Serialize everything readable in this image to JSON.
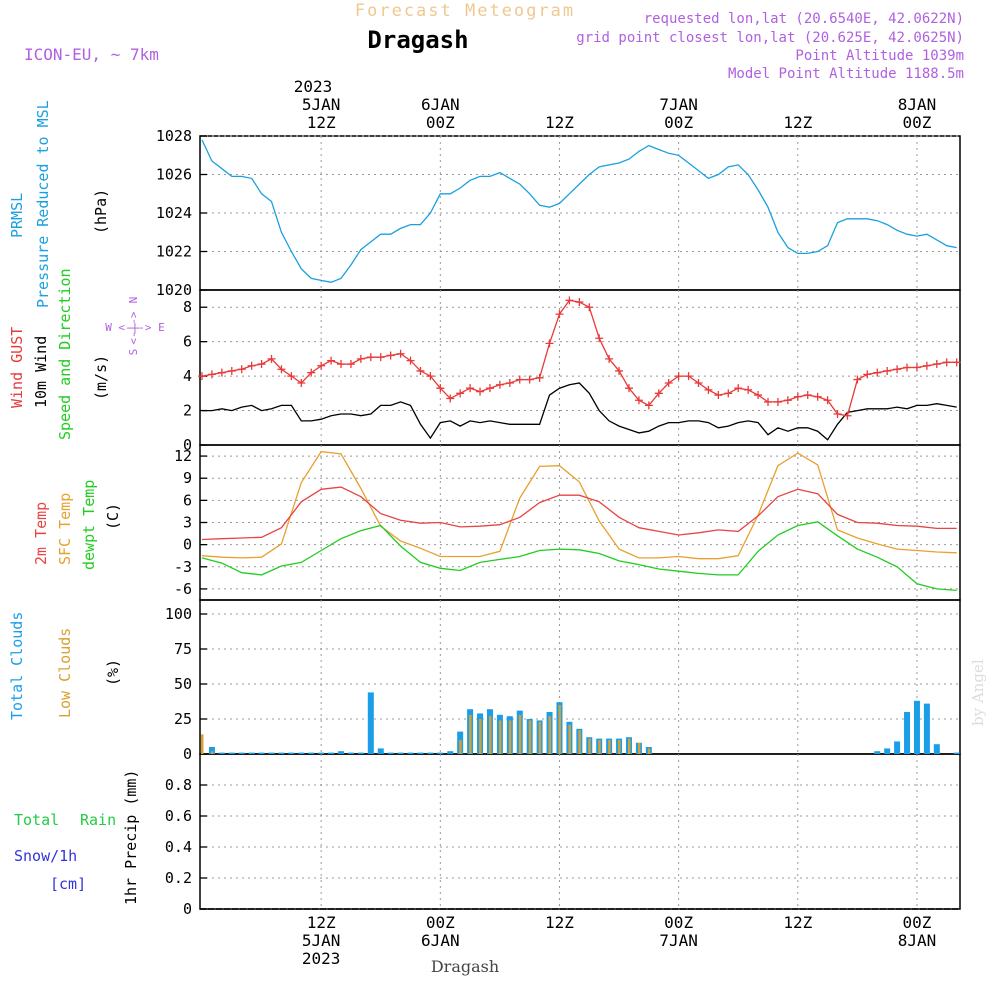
{
  "header": {
    "subtitle": "Forecast Meteogram",
    "location": "Dragash",
    "model": "ICON-EU, ~ 7km",
    "requested": "requested lon,lat (20.6540E, 42.0622N)",
    "grid_point": "grid point closest lon,lat (20.625E, 42.0625N)",
    "point_altitude": "Point Altitude 1039m",
    "model_altitude": "Model Point Altitude 1188.5m",
    "bottom_location": "Dragash",
    "watermark": "by Angel"
  },
  "time_axis": {
    "top_year": "2023",
    "labels": [
      {
        "t": 12,
        "line1": "5JAN",
        "line2": "12Z"
      },
      {
        "t": 24,
        "line1": "6JAN",
        "line2": "00Z"
      },
      {
        "t": 36,
        "line1": "",
        "line2": "12Z"
      },
      {
        "t": 48,
        "line1": "7JAN",
        "line2": "00Z"
      },
      {
        "t": 60,
        "line1": "",
        "line2": "12Z"
      },
      {
        "t": 72,
        "line1": "8JAN",
        "line2": "00Z"
      }
    ],
    "bottom_labels": [
      {
        "t": 12,
        "line1": "12Z",
        "line2": "5JAN",
        "line3": "2023"
      },
      {
        "t": 24,
        "line1": "00Z",
        "line2": "6JAN",
        "line3": ""
      },
      {
        "t": 36,
        "line1": "12Z",
        "line2": "",
        "line3": ""
      },
      {
        "t": 48,
        "line1": "00Z",
        "line2": "7JAN",
        "line3": ""
      },
      {
        "t": 60,
        "line1": "12Z",
        "line2": "",
        "line3": ""
      },
      {
        "t": 72,
        "line1": "00Z",
        "line2": "8JAN",
        "line3": ""
      }
    ]
  },
  "panel_labels": {
    "p1": {
      "a": "PRMSL",
      "b": "Pressure Reduced to MSL",
      "unit": "(hPa)"
    },
    "p2": {
      "a": "Wind GUST",
      "b": "10m Wind",
      "c": "Speed and Direction",
      "unit": "(m/s)",
      "compass_we": "W <-|-> E",
      "compass_n": "N",
      "compass_s": "S",
      "compass_arrows": "<-|->"
    },
    "p3": {
      "a": "2m Temp",
      "b": "SFC Temp",
      "c": "dewpt Temp",
      "unit": "(C)"
    },
    "p4": {
      "a": "Total Clouds",
      "b": "Low Clouds",
      "unit": "(%)"
    },
    "p5": {
      "a": "Total",
      "a2": "Rain",
      "b": "Snow/1h",
      "c": "[cm]",
      "unit": "1hr Precip (mm)"
    }
  },
  "colors": {
    "pressure": "#1aa0e0",
    "gust": "#e83a3a",
    "wind": "#000000",
    "t2m": "#e84444",
    "tsfc": "#e8a030",
    "dewpt": "#22cc22",
    "total_clouds": "#1a9ee8",
    "low_clouds": "#d8a030",
    "rain": "#22cc44",
    "snow": "#3333dd",
    "purple": "#b060e0",
    "header_orange": "#f0c890"
  },
  "chart_data": [
    {
      "type": "line",
      "title": "PRMSL",
      "ylabel": "(hPa)",
      "ylim": [
        1020,
        1028
      ],
      "yticks": [
        1020,
        1022,
        1024,
        1026,
        1028
      ],
      "x_unit": "hours from 5JAN 00Z",
      "x": [
        0,
        1,
        2,
        3,
        4,
        5,
        6,
        7,
        8,
        9,
        10,
        11,
        12,
        13,
        14,
        15,
        16,
        17,
        18,
        19,
        20,
        21,
        22,
        23,
        24,
        25,
        26,
        27,
        28,
        29,
        30,
        31,
        32,
        33,
        34,
        35,
        36,
        37,
        38,
        39,
        40,
        41,
        42,
        43,
        44,
        45,
        46,
        47,
        48,
        49,
        50,
        51,
        52,
        53,
        54,
        55,
        56,
        57,
        58,
        59,
        60,
        61,
        62,
        63,
        64,
        65,
        66,
        67,
        68,
        69,
        70,
        71,
        72,
        73,
        74,
        75,
        76
      ],
      "series": [
        {
          "name": "PRMSL",
          "values": [
            1027.8,
            1026.7,
            1026.3,
            1025.9,
            1025.9,
            1025.8,
            1025.0,
            1024.6,
            1023.0,
            1022.0,
            1021.1,
            1020.6,
            1020.5,
            1020.4,
            1020.6,
            1021.3,
            1022.1,
            1022.5,
            1022.9,
            1022.9,
            1023.2,
            1023.4,
            1023.4,
            1024.0,
            1025.0,
            1025.0,
            1025.3,
            1025.7,
            1025.9,
            1025.9,
            1026.1,
            1025.8,
            1025.5,
            1025.0,
            1024.4,
            1024.3,
            1024.5,
            1025.0,
            1025.5,
            1026.0,
            1026.4,
            1026.5,
            1026.6,
            1026.8,
            1027.2,
            1027.5,
            1027.3,
            1027.1,
            1027.0,
            1026.6,
            1026.2,
            1025.8,
            1026.0,
            1026.4,
            1026.5,
            1026.0,
            1025.2,
            1024.3,
            1023.0,
            1022.2,
            1021.9,
            1021.9,
            1022.0,
            1022.3,
            1023.5,
            1023.7,
            1023.7,
            1023.7,
            1023.6,
            1023.4,
            1023.1,
            1022.9,
            1022.8,
            1022.9,
            1022.6,
            1022.3,
            1022.2
          ]
        }
      ]
    },
    {
      "type": "line",
      "title": "Wind",
      "ylabel": "(m/s)",
      "ylim": [
        0,
        9
      ],
      "yticks": [
        0,
        2,
        4,
        6,
        8
      ],
      "x": [
        0,
        1,
        2,
        3,
        4,
        5,
        6,
        7,
        8,
        9,
        10,
        11,
        12,
        13,
        14,
        15,
        16,
        17,
        18,
        19,
        20,
        21,
        22,
        23,
        24,
        25,
        26,
        27,
        28,
        29,
        30,
        31,
        32,
        33,
        34,
        35,
        36,
        37,
        38,
        39,
        40,
        41,
        42,
        43,
        44,
        45,
        46,
        47,
        48,
        49,
        50,
        51,
        52,
        53,
        54,
        55,
        56,
        57,
        58,
        59,
        60,
        61,
        62,
        63,
        64,
        65,
        66,
        67,
        68,
        69,
        70,
        71,
        72,
        73,
        74,
        75,
        76
      ],
      "series": [
        {
          "name": "Wind GUST",
          "values": [
            4.0,
            4.1,
            4.2,
            4.3,
            4.4,
            4.6,
            4.7,
            5.0,
            4.4,
            4.0,
            3.6,
            4.2,
            4.6,
            4.9,
            4.7,
            4.7,
            5.0,
            5.1,
            5.1,
            5.2,
            5.3,
            4.9,
            4.3,
            4.0,
            3.3,
            2.7,
            3.0,
            3.3,
            3.1,
            3.3,
            3.5,
            3.6,
            3.8,
            3.8,
            3.9,
            5.9,
            7.6,
            8.4,
            8.3,
            8.0,
            6.2,
            5.0,
            4.3,
            3.3,
            2.6,
            2.3,
            3.0,
            3.6,
            4.0,
            4.0,
            3.6,
            3.2,
            2.9,
            3.0,
            3.3,
            3.2,
            2.9,
            2.5,
            2.5,
            2.6,
            2.8,
            2.9,
            2.8,
            2.6,
            1.8,
            1.7,
            3.8,
            4.1,
            4.2,
            4.3,
            4.4,
            4.5,
            4.5,
            4.6,
            4.7,
            4.8,
            4.8
          ]
        },
        {
          "name": "10m Wind",
          "values": [
            2.0,
            2.0,
            2.1,
            2.0,
            2.2,
            2.3,
            2.0,
            2.1,
            2.3,
            2.3,
            1.4,
            1.4,
            1.5,
            1.7,
            1.8,
            1.8,
            1.7,
            1.8,
            2.3,
            2.3,
            2.5,
            2.3,
            1.2,
            0.4,
            1.3,
            1.4,
            1.1,
            1.4,
            1.3,
            1.4,
            1.3,
            1.2,
            1.2,
            1.2,
            1.2,
            2.9,
            3.3,
            3.5,
            3.6,
            3.0,
            2.0,
            1.4,
            1.1,
            0.9,
            0.7,
            0.8,
            1.1,
            1.3,
            1.3,
            1.4,
            1.4,
            1.3,
            1.0,
            1.1,
            1.3,
            1.4,
            1.3,
            0.6,
            1.0,
            0.8,
            1.0,
            1.0,
            0.8,
            0.3,
            1.2,
            1.9,
            2.0,
            2.1,
            2.1,
            2.1,
            2.2,
            2.1,
            2.3,
            2.3,
            2.4,
            2.3,
            2.2
          ]
        }
      ]
    },
    {
      "type": "line",
      "title": "Temperature",
      "ylabel": "(C)",
      "ylim": [
        -7.5,
        13.5
      ],
      "yticks": [
        -6,
        -3,
        0,
        3,
        6,
        9,
        12
      ],
      "x": [
        0,
        2,
        4,
        6,
        8,
        10,
        12,
        14,
        16,
        18,
        20,
        22,
        24,
        26,
        28,
        30,
        32,
        34,
        36,
        38,
        40,
        42,
        44,
        46,
        48,
        50,
        52,
        54,
        56,
        58,
        60,
        62,
        64,
        66,
        68,
        70,
        72,
        74,
        76
      ],
      "series": [
        {
          "name": "2m Temp",
          "values": [
            0.7,
            0.8,
            0.9,
            1.0,
            2.3,
            5.8,
            7.5,
            7.8,
            6.5,
            4.2,
            3.3,
            2.9,
            3.0,
            2.4,
            2.5,
            2.7,
            3.7,
            5.7,
            6.7,
            6.7,
            5.8,
            3.7,
            2.3,
            1.8,
            1.3,
            1.6,
            2.0,
            1.8,
            3.9,
            6.5,
            7.5,
            6.9,
            4.1,
            3.0,
            2.9,
            2.6,
            2.5,
            2.2,
            2.2
          ]
        },
        {
          "name": "SFC Temp",
          "values": [
            -1.5,
            -1.7,
            -1.8,
            -1.7,
            0.1,
            8.4,
            12.6,
            12.3,
            7.6,
            2.5,
            0.5,
            -0.5,
            -1.6,
            -1.6,
            -1.6,
            -0.9,
            6.3,
            10.6,
            10.7,
            8.5,
            3.2,
            -0.6,
            -1.8,
            -1.8,
            -1.6,
            -1.9,
            -1.9,
            -1.5,
            4.0,
            10.7,
            12.4,
            10.8,
            2.0,
            0.9,
            0.1,
            -0.6,
            -0.8,
            -1.0,
            -1.1
          ]
        },
        {
          "name": "dewpt Temp",
          "values": [
            -1.8,
            -2.5,
            -3.8,
            -4.1,
            -2.9,
            -2.4,
            -0.8,
            0.8,
            1.9,
            2.6,
            -0.2,
            -2.4,
            -3.2,
            -3.5,
            -2.4,
            -2.0,
            -1.6,
            -0.8,
            -0.6,
            -0.7,
            -1.2,
            -2.2,
            -2.7,
            -3.3,
            -3.6,
            -3.9,
            -4.1,
            -4.1,
            -0.9,
            1.3,
            2.6,
            3.1,
            1.2,
            -0.6,
            -1.7,
            -3.0,
            -5.3,
            -6.0,
            -6.2
          ]
        }
      ]
    },
    {
      "type": "bar",
      "title": "Clouds",
      "ylabel": "(%)",
      "ylim": [
        0,
        110
      ],
      "yticks": [
        0,
        25,
        50,
        75,
        100
      ],
      "x": [
        0,
        1,
        2,
        3,
        4,
        5,
        6,
        7,
        8,
        9,
        10,
        11,
        12,
        13,
        14,
        15,
        16,
        17,
        18,
        19,
        20,
        21,
        22,
        23,
        24,
        25,
        26,
        27,
        28,
        29,
        30,
        31,
        32,
        33,
        34,
        35,
        36,
        37,
        38,
        39,
        40,
        41,
        42,
        43,
        44,
        45,
        46,
        47,
        48,
        49,
        50,
        51,
        52,
        53,
        54,
        55,
        56,
        57,
        58,
        59,
        60,
        61,
        62,
        63,
        64,
        65,
        66,
        67,
        68,
        69,
        70,
        71,
        72,
        73,
        74,
        75,
        76
      ],
      "series": [
        {
          "name": "Total Clouds",
          "values": [
            0,
            5,
            1,
            1,
            1,
            1,
            1,
            1,
            1,
            1,
            1,
            1,
            1,
            1,
            2,
            1,
            1,
            44,
            4,
            1,
            1,
            1,
            1,
            1,
            1,
            2,
            16,
            32,
            29,
            32,
            28,
            27,
            31,
            25,
            24,
            30,
            37,
            23,
            18,
            12,
            11,
            11,
            11,
            12,
            8,
            5,
            0,
            0,
            0,
            0,
            0,
            0,
            0,
            0,
            0,
            0,
            0,
            0,
            0,
            0,
            0,
            0,
            0,
            0,
            0,
            0,
            0,
            0,
            2,
            4,
            9,
            30,
            38,
            36,
            7,
            0,
            1
          ]
        },
        {
          "name": "Low Clouds",
          "values": [
            14,
            2,
            0,
            0,
            0,
            0,
            0,
            0,
            0,
            0,
            0,
            0,
            0,
            0,
            0,
            0,
            0,
            0,
            0,
            0,
            0,
            0,
            0,
            0,
            0,
            0,
            10,
            28,
            25,
            27,
            24,
            24,
            28,
            24,
            23,
            27,
            35,
            21,
            17,
            11,
            10,
            10,
            10,
            11,
            8,
            4,
            0,
            0,
            0,
            0,
            0,
            0,
            0,
            0,
            0,
            0,
            0,
            0,
            0,
            0,
            0,
            0,
            0,
            0,
            0,
            0,
            0,
            0,
            0,
            0,
            0,
            0,
            0,
            0,
            0,
            0,
            0
          ]
        }
      ]
    },
    {
      "type": "bar",
      "title": "1hr Precip",
      "ylabel": "1hr Precip (mm)",
      "ylim": [
        0,
        1.0
      ],
      "yticks": [
        0,
        0.2,
        0.4,
        0.6,
        0.8
      ],
      "series": [
        {
          "name": "Total Rain",
          "values": []
        },
        {
          "name": "Snow/1h",
          "values": []
        }
      ]
    }
  ]
}
